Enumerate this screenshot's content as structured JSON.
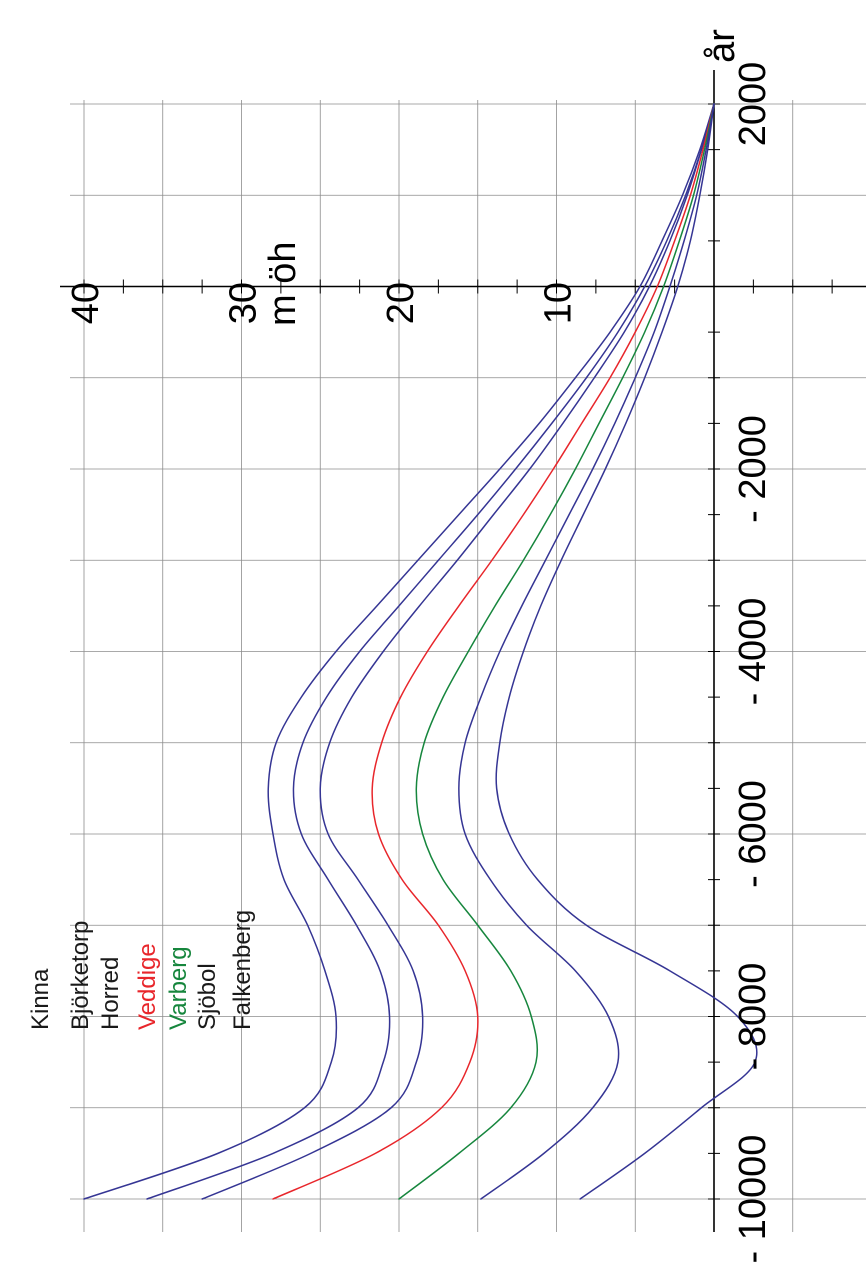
{
  "chart_data": {
    "type": "line",
    "orientation": "rotated 90° counter-clockwise (page turned sideways)",
    "title": "",
    "xlabel": "år",
    "ylabel": "m öh",
    "xlim": [
      -10000,
      2000
    ],
    "ylim": [
      -5,
      40
    ],
    "grid": true,
    "x_tick_values": [
      -10000,
      -8000,
      -6000,
      -4000,
      -2000,
      2000
    ],
    "x_tick_labels": [
      "- 10000",
      "- 8000",
      "- 6000",
      "- 4000",
      "- 2000",
      "2000"
    ],
    "y_tick_values": [
      10,
      20,
      30,
      40
    ],
    "y_tick_labels": [
      "10",
      "20",
      "30",
      "40"
    ],
    "legend_position": "bottom-left (upper-left when the page is turned upright)",
    "series": [
      {
        "name": "Kinna",
        "color": "#353594",
        "x": [
          -10000,
          -9500,
          -9000,
          -8500,
          -8000,
          -7500,
          -7000,
          -6500,
          -6000,
          -5500,
          -5000,
          -4500,
          -4000,
          -3500,
          -3000,
          -2500,
          -2000,
          -1500,
          -1000,
          -500,
          0,
          500,
          1000,
          1500,
          2000
        ],
        "y": [
          40,
          31.5,
          26,
          24.3,
          24,
          24.7,
          25.8,
          27.3,
          28,
          28.3,
          27.8,
          26.2,
          24,
          21.4,
          18.8,
          16.2,
          13.6,
          11.1,
          8.8,
          6.6,
          4.7,
          3.3,
          2,
          0.9,
          0
        ]
      },
      {
        "name": "Björketorp",
        "color": "#353594",
        "x": [
          -10000,
          -9500,
          -9000,
          -8500,
          -8000,
          -7500,
          -7000,
          -6500,
          -6000,
          -5500,
          -5000,
          -4500,
          -4000,
          -3500,
          -3000,
          -2500,
          -2000,
          -1500,
          -1000,
          -500,
          0,
          500,
          1000,
          1500,
          2000
        ],
        "y": [
          36,
          28,
          22.6,
          21,
          20.6,
          21.2,
          22.7,
          24.5,
          26.2,
          26.7,
          26.1,
          24.6,
          22.5,
          20,
          17.5,
          15,
          12.6,
          10.3,
          8.1,
          6.1,
          4.4,
          3,
          1.8,
          0.8,
          0
        ]
      },
      {
        "name": "Horred",
        "color": "#353594",
        "x": [
          -10000,
          -9500,
          -9000,
          -8500,
          -8000,
          -7500,
          -7000,
          -6500,
          -6000,
          -5500,
          -5000,
          -4500,
          -4000,
          -3500,
          -3000,
          -2500,
          -2000,
          -1500,
          -1000,
          -500,
          0,
          500,
          1000,
          1500,
          2000
        ],
        "y": [
          32.5,
          25.6,
          20.5,
          18.9,
          18.5,
          19.1,
          20.7,
          22.6,
          24.5,
          25,
          24.4,
          23,
          21,
          18.7,
          16.3,
          14,
          11.7,
          9.6,
          7.6,
          5.7,
          4.1,
          2.8,
          1.7,
          0.8,
          0
        ]
      },
      {
        "name": "Veddige",
        "color": "#e8262b",
        "x": [
          -10000,
          -9500,
          -9000,
          -8500,
          -8000,
          -7500,
          -7000,
          -6500,
          -6000,
          -5500,
          -5000,
          -4500,
          -4000,
          -3500,
          -3000,
          -2500,
          -2000,
          -1500,
          -1000,
          -500,
          0,
          500,
          1000,
          1500,
          2000
        ],
        "y": [
          28,
          21.5,
          17.3,
          15.5,
          15,
          15.8,
          17.5,
          19.8,
          21.3,
          21.7,
          21.1,
          19.9,
          18.2,
          16.2,
          14.1,
          12.1,
          10.2,
          8.4,
          6.6,
          5,
          3.6,
          2.5,
          1.5,
          0.7,
          0
        ]
      },
      {
        "name": "Varberg",
        "color": "#16863d",
        "x": [
          -10000,
          -9500,
          -9000,
          -8500,
          -8000,
          -7500,
          -7000,
          -6500,
          -6000,
          -5500,
          -5000,
          -4500,
          -4000,
          -3500,
          -3000,
          -2500,
          -2000,
          -1500,
          -1000,
          -500,
          0,
          500,
          1000,
          1500,
          2000
        ],
        "y": [
          20,
          16.2,
          12.9,
          11.3,
          11.6,
          12.9,
          15,
          17.2,
          18.5,
          18.9,
          18.4,
          17.2,
          15.6,
          13.9,
          12.1,
          10.4,
          8.8,
          7.3,
          5.8,
          4.4,
          3.2,
          2.2,
          1.3,
          0.6,
          0
        ]
      },
      {
        "name": "Sjöbol",
        "color": "#353594",
        "x": [
          -10000,
          -9500,
          -9000,
          -8500,
          -8000,
          -7500,
          -7000,
          -6500,
          -6000,
          -5500,
          -5000,
          -4500,
          -4000,
          -3500,
          -3000,
          -2500,
          -2000,
          -1500,
          -1000,
          -500,
          0,
          500,
          1000,
          1500,
          2000
        ],
        "y": [
          14.8,
          10.8,
          7.7,
          6.1,
          6.7,
          8.8,
          11.9,
          14.2,
          15.8,
          16.2,
          15.8,
          14.8,
          13.6,
          12.2,
          10.7,
          9.2,
          7.7,
          6.3,
          5,
          3.8,
          2.8,
          1.9,
          1.1,
          0.5,
          0
        ]
      },
      {
        "name": "Falkenberg",
        "color": "#353594",
        "x": [
          -10000,
          -9500,
          -9000,
          -8500,
          -8000,
          -7500,
          -7000,
          -6500,
          -6000,
          -5500,
          -5000,
          -4500,
          -4000,
          -3500,
          -3000,
          -2500,
          -2000,
          -1500,
          -1000,
          -500,
          0,
          500,
          1000,
          1500,
          2000
        ],
        "y": [
          8.5,
          4.4,
          0.8,
          -2.6,
          -1.5,
          2.8,
          8.1,
          11.2,
          13,
          13.8,
          13.6,
          13,
          12.1,
          11,
          9.7,
          8.3,
          6.9,
          5.6,
          4.4,
          3.3,
          2.3,
          1.5,
          0.9,
          0.4,
          0
        ]
      }
    ]
  }
}
